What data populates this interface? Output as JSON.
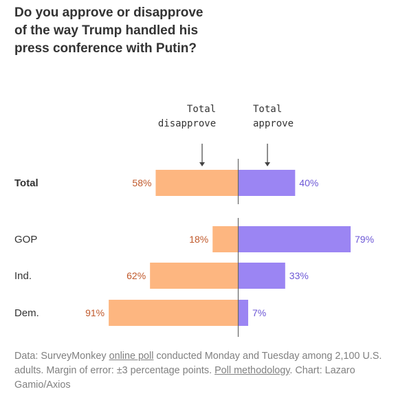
{
  "title_lines": [
    "Do you approve or disapprove",
    "of the way Trump handled his",
    "press conference with Putin?"
  ],
  "colors": {
    "disapprove_bar": "#fdb680",
    "approve_bar": "#9b85f3",
    "disapprove_text": "#c0592b",
    "approve_text": "#6c57d6",
    "axis": "#666666"
  },
  "chart_data": {
    "type": "bar",
    "orientation": "diverging-horizontal",
    "categories": [
      "Total",
      "GOP",
      "Ind.",
      "Dem."
    ],
    "series": [
      {
        "name": "Total disapprove",
        "values": [
          58,
          18,
          62,
          91
        ]
      },
      {
        "name": "Total approve",
        "values": [
          40,
          79,
          33,
          7
        ]
      }
    ],
    "annotations": [
      {
        "series": "Total disapprove",
        "lines": [
          "Total",
          "disapprove"
        ]
      },
      {
        "series": "Total approve",
        "lines": [
          "Total",
          "approve"
        ]
      }
    ],
    "value_suffix": "%",
    "xlim": [
      -100,
      100
    ]
  },
  "footer": {
    "part1": "Data: SurveyMonkey ",
    "link1": "online poll",
    "part2": " conducted Monday and Tuesday among 2,100 U.S. adults. Margin of error: ±3 percentage points. ",
    "link2": "Poll methodology",
    "part3": ". Chart: Lazaro Gamio/Axios"
  }
}
